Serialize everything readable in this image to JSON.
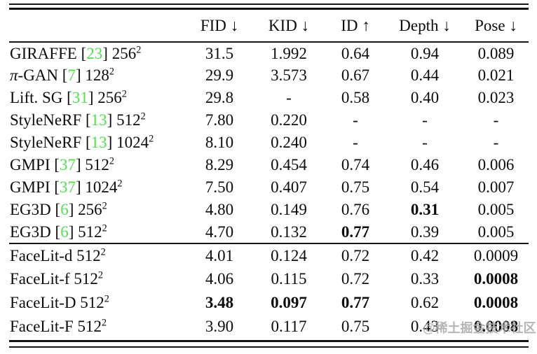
{
  "table": {
    "headers": [
      {
        "key": "method",
        "label": ""
      },
      {
        "key": "fid",
        "label": "FID ↓"
      },
      {
        "key": "kid",
        "label": "KID ↓"
      },
      {
        "key": "id",
        "label": "ID ↑"
      },
      {
        "key": "depth",
        "label": "Depth ↓"
      },
      {
        "key": "pose",
        "label": "Pose ↓"
      }
    ],
    "groups": [
      {
        "rows": [
          {
            "name": "GIRAFFE",
            "cite": "23",
            "res": "256",
            "sup": "2",
            "fid": "31.5",
            "kid": "1.992",
            "id": "0.64",
            "depth": "0.94",
            "pose": "0.089",
            "bold": []
          },
          {
            "name": "π-GAN",
            "cite": "7",
            "res": "128",
            "sup": "2",
            "fid": "29.9",
            "kid": "3.573",
            "id": "0.67",
            "depth": "0.44",
            "pose": "0.021",
            "bold": []
          },
          {
            "name": "Lift. SG",
            "cite": "31",
            "res": "256",
            "sup": "2",
            "fid": "29.8",
            "kid": "-",
            "id": "0.58",
            "depth": "0.40",
            "pose": "0.023",
            "bold": []
          },
          {
            "name": "StyleNeRF",
            "cite": "13",
            "res": "512",
            "sup": "2",
            "fid": "7.80",
            "kid": "0.220",
            "id": "-",
            "depth": "-",
            "pose": "-",
            "bold": []
          },
          {
            "name": "StyleNeRF",
            "cite": "13",
            "res": "1024",
            "sup": "2",
            "fid": "8.10",
            "kid": "0.240",
            "id": "-",
            "depth": "-",
            "pose": "-",
            "bold": []
          },
          {
            "name": "GMPI",
            "cite": "37",
            "res": "512",
            "sup": "2",
            "fid": "8.29",
            "kid": "0.454",
            "id": "0.74",
            "depth": "0.46",
            "pose": "0.006",
            "bold": []
          },
          {
            "name": "GMPI",
            "cite": "37",
            "res": "1024",
            "sup": "2",
            "fid": "7.50",
            "kid": "0.407",
            "id": "0.75",
            "depth": "0.54",
            "pose": "0.007",
            "bold": []
          },
          {
            "name": "EG3D",
            "cite": "6",
            "res": "256",
            "sup": "2",
            "fid": "4.80",
            "kid": "0.149",
            "id": "0.76",
            "depth": "0.31",
            "pose": "0.005",
            "bold": [
              "depth"
            ]
          },
          {
            "name": "EG3D",
            "cite": "6",
            "res": "512",
            "sup": "2",
            "fid": "4.70",
            "kid": "0.132",
            "id": "0.77",
            "depth": "0.39",
            "pose": "0.005",
            "bold": [
              "id"
            ]
          }
        ]
      },
      {
        "rows": [
          {
            "name": "FaceLit-d",
            "cite": null,
            "res": "512",
            "sup": "2",
            "fid": "4.01",
            "kid": "0.124",
            "id": "0.72",
            "depth": "0.42",
            "pose": "0.0009",
            "bold": []
          },
          {
            "name": "FaceLit-f",
            "cite": null,
            "res": "512",
            "sup": "2",
            "fid": "4.06",
            "kid": "0.115",
            "id": "0.72",
            "depth": "0.33",
            "pose": "0.0008",
            "bold": [
              "pose"
            ]
          },
          {
            "name": "FaceLit-D",
            "cite": null,
            "res": "512",
            "sup": "2",
            "fid": "3.48",
            "kid": "0.097",
            "id": "0.77",
            "depth": "0.62",
            "pose": "0.0008",
            "bold": [
              "fid",
              "kid",
              "id",
              "pose"
            ]
          },
          {
            "name": "FaceLit-F",
            "cite": null,
            "res": "512",
            "sup": "2",
            "fid": "3.90",
            "kid": "0.117",
            "id": "0.75",
            "depth": "0.43",
            "pose": "0.0008",
            "bold": [
              "pose"
            ]
          }
        ]
      }
    ]
  },
  "watermark": {
    "text": "@稀土掘金技术社区"
  },
  "colors": {
    "citation_green": "#50e050",
    "rule": "#141414",
    "text": "#0c0c0c",
    "watermark_gray": "#a8a8a8"
  }
}
